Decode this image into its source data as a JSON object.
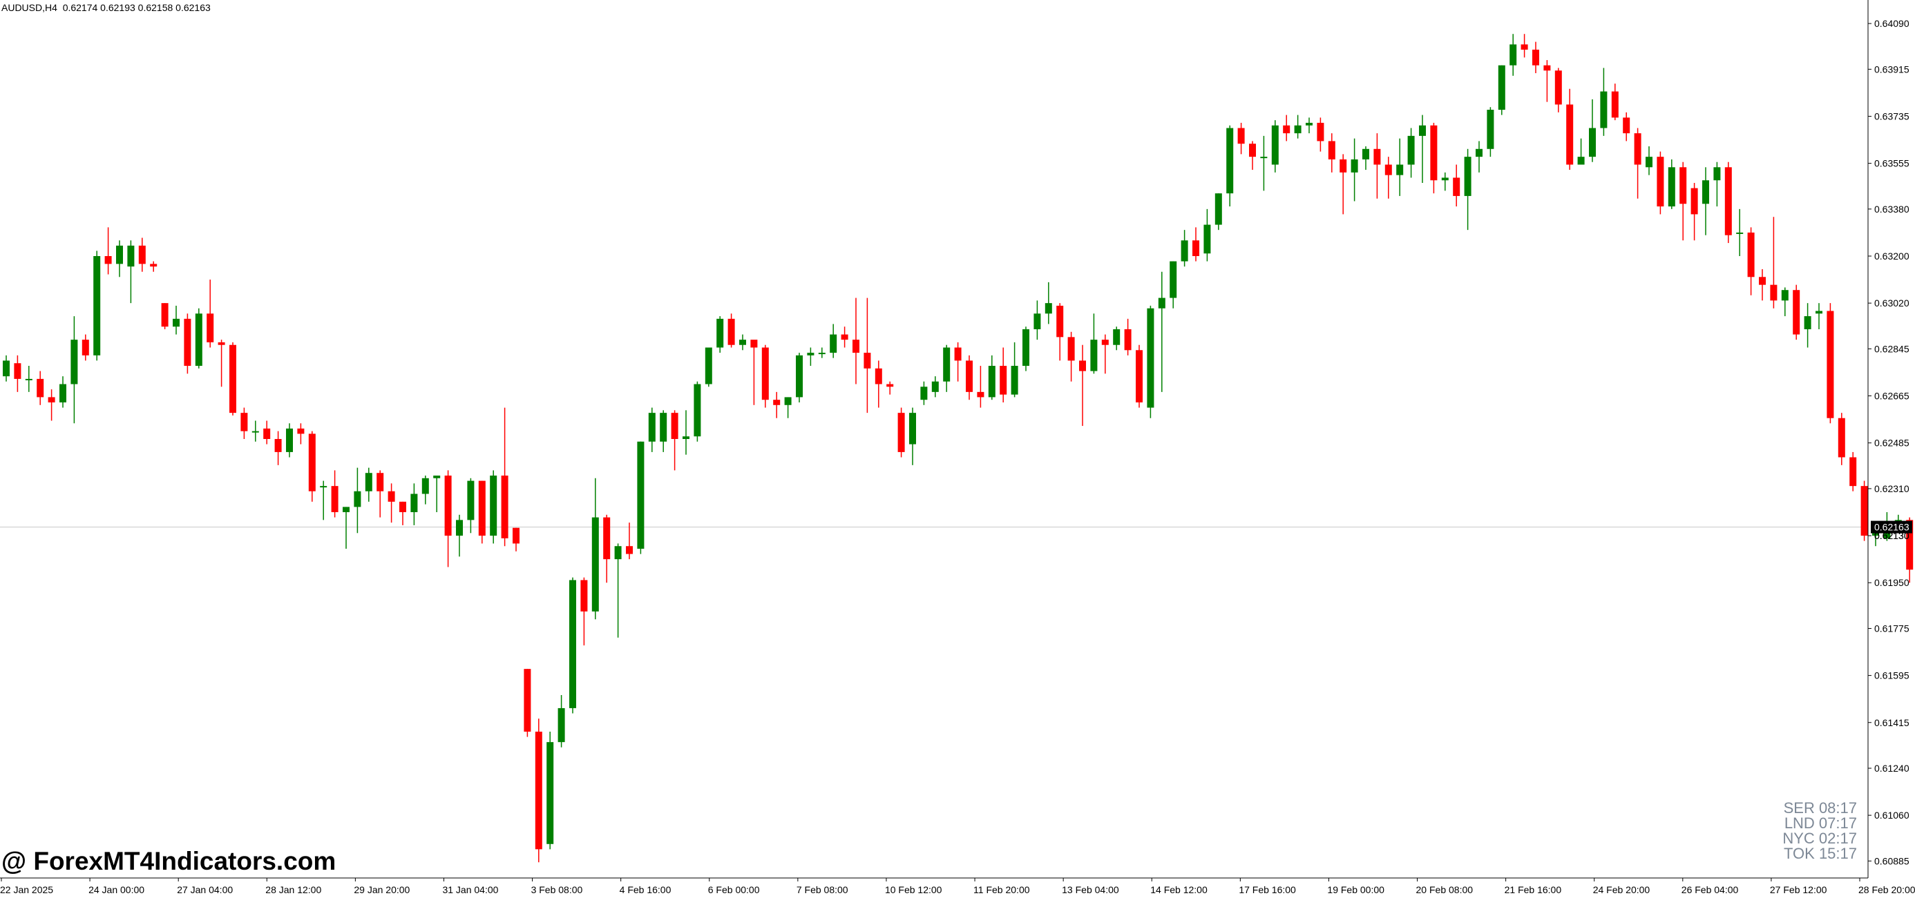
{
  "header": {
    "symbol": "AUDUSD,H4",
    "quote": "0.62174 0.62193 0.62158 0.62163"
  },
  "watermark": "@ ForexMT4Indicators.com",
  "sessions": [
    "SER 08:17",
    "LND 07:17",
    "NYC 02:17",
    "TOK 15:17"
  ],
  "colors": {
    "bull": "#008000",
    "bear": "#ff0000",
    "grid": "#c8c8c8",
    "axis": "#000000",
    "price_tag": "#000000"
  },
  "chart_data": {
    "type": "candlestick",
    "symbol": "AUDUSD",
    "timeframe": "H4",
    "ylim": [
      0.6082,
      0.6418
    ],
    "y_ticks": [
      "0.64090",
      "0.63915",
      "0.63735",
      "0.63555",
      "0.63380",
      "0.63200",
      "0.63020",
      "0.62845",
      "0.62665",
      "0.62485",
      "0.62310",
      "0.62130",
      "0.61950",
      "0.61775",
      "0.61595",
      "0.61415",
      "0.61240",
      "0.61060",
      "0.60885"
    ],
    "x_ticks": [
      "22 Jan 2025",
      "24 Jan 00:00",
      "27 Jan 04:00",
      "28 Jan 12:00",
      "29 Jan 20:00",
      "31 Jan 04:00",
      "3 Feb 08:00",
      "4 Feb 16:00",
      "6 Feb 00:00",
      "7 Feb 08:00",
      "10 Feb 12:00",
      "11 Feb 20:00",
      "13 Feb 04:00",
      "14 Feb 12:00",
      "17 Feb 16:00",
      "19 Feb 00:00",
      "20 Feb 08:00",
      "21 Feb 16:00",
      "24 Feb 20:00",
      "26 Feb 04:00",
      "27 Feb 12:00",
      "28 Feb 20:00"
    ],
    "current_price": "0.62163",
    "current_value": 0.62163,
    "hidden_tick": "0.62130",
    "candles": [
      [
        0.6274,
        0.628,
        0.6272,
        0.6282
      ],
      [
        0.6279,
        0.6273,
        0.6268,
        0.6282
      ],
      [
        0.6273,
        0.6273,
        0.6268,
        0.6278
      ],
      [
        0.6273,
        0.6266,
        0.6263,
        0.6276
      ],
      [
        0.6266,
        0.6264,
        0.6257,
        0.6269
      ],
      [
        0.6264,
        0.6271,
        0.6262,
        0.6274
      ],
      [
        0.6271,
        0.6288,
        0.6256,
        0.6297
      ],
      [
        0.6288,
        0.6282,
        0.628,
        0.629
      ],
      [
        0.6282,
        0.632,
        0.628,
        0.6322
      ],
      [
        0.632,
        0.6317,
        0.6313,
        0.6331
      ],
      [
        0.6317,
        0.6324,
        0.6312,
        0.6326
      ],
      [
        0.6316,
        0.6324,
        0.6302,
        0.6326
      ],
      [
        0.6324,
        0.6317,
        0.6314,
        0.6327
      ],
      [
        0.6317,
        0.6316,
        0.6314,
        0.6318
      ],
      [
        0.6302,
        0.6293,
        0.6292,
        0.6302
      ],
      [
        0.6293,
        0.6296,
        0.629,
        0.6301
      ],
      [
        0.6296,
        0.6278,
        0.6275,
        0.6298
      ],
      [
        0.6278,
        0.6298,
        0.6277,
        0.63
      ],
      [
        0.6298,
        0.6287,
        0.6285,
        0.6311
      ],
      [
        0.6287,
        0.6286,
        0.627,
        0.6288
      ],
      [
        0.6286,
        0.626,
        0.6259,
        0.6287
      ],
      [
        0.626,
        0.6253,
        0.625,
        0.6262
      ],
      [
        0.6253,
        0.6253,
        0.6249,
        0.6257
      ],
      [
        0.6254,
        0.625,
        0.6248,
        0.6257
      ],
      [
        0.625,
        0.6245,
        0.624,
        0.6253
      ],
      [
        0.6245,
        0.6254,
        0.6243,
        0.6256
      ],
      [
        0.6254,
        0.6252,
        0.6248,
        0.6256
      ],
      [
        0.6252,
        0.623,
        0.6226,
        0.6253
      ],
      [
        0.6232,
        0.6232,
        0.6219,
        0.6234
      ],
      [
        0.6232,
        0.6222,
        0.622,
        0.6238
      ],
      [
        0.6222,
        0.6224,
        0.6208,
        0.6224
      ],
      [
        0.6224,
        0.623,
        0.6214,
        0.6239
      ],
      [
        0.623,
        0.6237,
        0.6226,
        0.6239
      ],
      [
        0.6237,
        0.623,
        0.622,
        0.6238
      ],
      [
        0.623,
        0.6226,
        0.6218,
        0.6233
      ],
      [
        0.6226,
        0.6222,
        0.6217,
        0.6226
      ],
      [
        0.6222,
        0.6229,
        0.6217,
        0.6233
      ],
      [
        0.6229,
        0.6235,
        0.6225,
        0.6236
      ],
      [
        0.6235,
        0.6236,
        0.6222,
        0.6236
      ],
      [
        0.6236,
        0.6213,
        0.6201,
        0.6238
      ],
      [
        0.6213,
        0.6219,
        0.6205,
        0.6221
      ],
      [
        0.6219,
        0.6234,
        0.6214,
        0.6235
      ],
      [
        0.6234,
        0.6213,
        0.621,
        0.6234
      ],
      [
        0.6213,
        0.6236,
        0.621,
        0.6238
      ],
      [
        0.6236,
        0.6212,
        0.6209,
        0.6262
      ],
      [
        0.6216,
        0.621,
        0.6207,
        0.6216
      ],
      [
        0.6162,
        0.6138,
        0.6136,
        0.6162
      ],
      [
        0.6138,
        0.6093,
        0.6088,
        0.6143
      ],
      [
        0.6095,
        0.6134,
        0.6093,
        0.6138
      ],
      [
        0.6134,
        0.6147,
        0.6132,
        0.6152
      ],
      [
        0.6147,
        0.6196,
        0.6145,
        0.6197
      ],
      [
        0.6196,
        0.6184,
        0.6171,
        0.6197
      ],
      [
        0.6184,
        0.622,
        0.6181,
        0.6235
      ],
      [
        0.622,
        0.6204,
        0.6195,
        0.6221
      ],
      [
        0.6204,
        0.6209,
        0.6174,
        0.621
      ],
      [
        0.6209,
        0.6206,
        0.6204,
        0.6218
      ],
      [
        0.6208,
        0.6249,
        0.6206,
        0.6249
      ],
      [
        0.6249,
        0.626,
        0.6245,
        0.6262
      ],
      [
        0.6249,
        0.626,
        0.6245,
        0.6261
      ],
      [
        0.626,
        0.625,
        0.6238,
        0.6261
      ],
      [
        0.625,
        0.6251,
        0.6244,
        0.6261
      ],
      [
        0.6251,
        0.6271,
        0.6249,
        0.6272
      ],
      [
        0.6271,
        0.6285,
        0.627,
        0.6285
      ],
      [
        0.6285,
        0.6296,
        0.6283,
        0.6297
      ],
      [
        0.6296,
        0.6286,
        0.6285,
        0.6298
      ],
      [
        0.6286,
        0.6288,
        0.6284,
        0.629
      ],
      [
        0.6288,
        0.6285,
        0.6263,
        0.6287
      ],
      [
        0.6285,
        0.6265,
        0.6262,
        0.6286
      ],
      [
        0.6265,
        0.6263,
        0.6258,
        0.6268
      ],
      [
        0.6263,
        0.6266,
        0.6258,
        0.6266
      ],
      [
        0.6266,
        0.6282,
        0.6264,
        0.6283
      ],
      [
        0.6282,
        0.6283,
        0.6278,
        0.6285
      ],
      [
        0.6283,
        0.6283,
        0.6281,
        0.6285
      ],
      [
        0.6283,
        0.629,
        0.6281,
        0.6294
      ],
      [
        0.629,
        0.6288,
        0.6285,
        0.6293
      ],
      [
        0.6288,
        0.6283,
        0.6271,
        0.6304
      ],
      [
        0.6283,
        0.6277,
        0.626,
        0.6304
      ],
      [
        0.6277,
        0.6271,
        0.6262,
        0.628
      ],
      [
        0.6271,
        0.627,
        0.6267,
        0.6272
      ],
      [
        0.626,
        0.6245,
        0.6243,
        0.6262
      ],
      [
        0.6248,
        0.626,
        0.624,
        0.6262
      ],
      [
        0.6265,
        0.627,
        0.6263,
        0.6272
      ],
      [
        0.6268,
        0.6272,
        0.6266,
        0.6274
      ],
      [
        0.6272,
        0.6285,
        0.6268,
        0.6286
      ],
      [
        0.6285,
        0.628,
        0.6272,
        0.6287
      ],
      [
        0.628,
        0.6268,
        0.6265,
        0.6282
      ],
      [
        0.6268,
        0.6266,
        0.6262,
        0.6278
      ],
      [
        0.6266,
        0.6278,
        0.6265,
        0.6282
      ],
      [
        0.6278,
        0.6267,
        0.6264,
        0.6285
      ],
      [
        0.6267,
        0.6278,
        0.6266,
        0.6287
      ],
      [
        0.6278,
        0.6292,
        0.6276,
        0.6293
      ],
      [
        0.6292,
        0.6298,
        0.6288,
        0.6303
      ],
      [
        0.6298,
        0.6302,
        0.6294,
        0.631
      ],
      [
        0.6301,
        0.6289,
        0.628,
        0.6302
      ],
      [
        0.6289,
        0.628,
        0.6272,
        0.6291
      ],
      [
        0.628,
        0.6276,
        0.6255,
        0.6286
      ],
      [
        0.6276,
        0.6288,
        0.6275,
        0.6298
      ],
      [
        0.6288,
        0.6286,
        0.6275,
        0.629
      ],
      [
        0.6286,
        0.6292,
        0.6284,
        0.6293
      ],
      [
        0.6292,
        0.6284,
        0.6282,
        0.6296
      ],
      [
        0.6284,
        0.6264,
        0.6262,
        0.6286
      ],
      [
        0.6262,
        0.63,
        0.6258,
        0.6301
      ],
      [
        0.63,
        0.6304,
        0.6268,
        0.6314
      ],
      [
        0.6304,
        0.6318,
        0.63,
        0.6318
      ],
      [
        0.6318,
        0.6326,
        0.6316,
        0.633
      ],
      [
        0.6326,
        0.632,
        0.6318,
        0.6331
      ],
      [
        0.6321,
        0.6332,
        0.6318,
        0.6338
      ],
      [
        0.6332,
        0.6344,
        0.633,
        0.6344
      ],
      [
        0.6344,
        0.6369,
        0.6339,
        0.637
      ],
      [
        0.6369,
        0.6363,
        0.6359,
        0.6371
      ],
      [
        0.6363,
        0.6358,
        0.6353,
        0.6364
      ],
      [
        0.6358,
        0.6358,
        0.6345,
        0.6366
      ],
      [
        0.6355,
        0.637,
        0.6352,
        0.6372
      ],
      [
        0.637,
        0.6367,
        0.6364,
        0.6374
      ],
      [
        0.6367,
        0.637,
        0.6365,
        0.6374
      ],
      [
        0.637,
        0.6371,
        0.6367,
        0.6373
      ],
      [
        0.6371,
        0.6364,
        0.636,
        0.6373
      ],
      [
        0.6364,
        0.6357,
        0.6352,
        0.6367
      ],
      [
        0.6357,
        0.6352,
        0.6336,
        0.6359
      ],
      [
        0.6352,
        0.6357,
        0.6341,
        0.6365
      ],
      [
        0.6357,
        0.6361,
        0.6353,
        0.6362
      ],
      [
        0.6361,
        0.6355,
        0.6342,
        0.6367
      ],
      [
        0.6355,
        0.6351,
        0.6342,
        0.6358
      ],
      [
        0.6351,
        0.6355,
        0.6343,
        0.6365
      ],
      [
        0.6355,
        0.6366,
        0.635,
        0.6369
      ],
      [
        0.6366,
        0.637,
        0.6348,
        0.6374
      ],
      [
        0.637,
        0.6349,
        0.6344,
        0.6371
      ],
      [
        0.6349,
        0.635,
        0.6345,
        0.6352
      ],
      [
        0.635,
        0.6343,
        0.6339,
        0.6355
      ],
      [
        0.6343,
        0.6358,
        0.633,
        0.6361
      ],
      [
        0.6358,
        0.6361,
        0.6352,
        0.6364
      ],
      [
        0.6361,
        0.6376,
        0.6358,
        0.6377
      ],
      [
        0.6376,
        0.6393,
        0.6374,
        0.6393
      ],
      [
        0.6393,
        0.6401,
        0.6389,
        0.6405
      ],
      [
        0.6401,
        0.6399,
        0.6396,
        0.6405
      ],
      [
        0.6399,
        0.6393,
        0.639,
        0.6402
      ],
      [
        0.6393,
        0.6391,
        0.6379,
        0.6395
      ],
      [
        0.6391,
        0.6378,
        0.6375,
        0.6392
      ],
      [
        0.6378,
        0.6355,
        0.6353,
        0.6384
      ],
      [
        0.6355,
        0.6358,
        0.6355,
        0.6365
      ],
      [
        0.6358,
        0.6369,
        0.6356,
        0.638
      ],
      [
        0.6369,
        0.6383,
        0.6366,
        0.6392
      ],
      [
        0.6383,
        0.6373,
        0.6372,
        0.6386
      ],
      [
        0.6373,
        0.6367,
        0.6364,
        0.6375
      ],
      [
        0.6367,
        0.6355,
        0.6342,
        0.6369
      ],
      [
        0.6354,
        0.6358,
        0.6351,
        0.6362
      ],
      [
        0.6358,
        0.6339,
        0.6336,
        0.636
      ],
      [
        0.6339,
        0.6354,
        0.6338,
        0.6357
      ],
      [
        0.6354,
        0.634,
        0.6326,
        0.6356
      ],
      [
        0.6346,
        0.6336,
        0.6326,
        0.6348
      ],
      [
        0.634,
        0.6349,
        0.6328,
        0.6354
      ],
      [
        0.6349,
        0.6354,
        0.6339,
        0.6356
      ],
      [
        0.6354,
        0.6328,
        0.6325,
        0.6356
      ],
      [
        0.6329,
        0.6329,
        0.632,
        0.6338
      ],
      [
        0.6329,
        0.6312,
        0.6305,
        0.6331
      ],
      [
        0.6312,
        0.6309,
        0.6303,
        0.6315
      ],
      [
        0.6309,
        0.6303,
        0.63,
        0.6335
      ],
      [
        0.6303,
        0.6307,
        0.6297,
        0.6308
      ],
      [
        0.6307,
        0.629,
        0.6288,
        0.6309
      ],
      [
        0.6292,
        0.6297,
        0.6285,
        0.6302
      ],
      [
        0.6298,
        0.6299,
        0.6292,
        0.6302
      ],
      [
        0.6299,
        0.6258,
        0.6256,
        0.6302
      ],
      [
        0.6258,
        0.6243,
        0.624,
        0.626
      ],
      [
        0.6243,
        0.6232,
        0.623,
        0.6245
      ],
      [
        0.6232,
        0.6213,
        0.6211,
        0.6234
      ],
      [
        0.6213,
        0.6214,
        0.6209,
        0.6216
      ],
      [
        0.6212,
        0.6218,
        0.6211,
        0.6222
      ],
      [
        0.6218,
        0.6219,
        0.6215,
        0.6221
      ],
      [
        0.6219,
        0.62,
        0.6195,
        0.622
      ],
      [
        0.6204,
        0.6215,
        0.6202,
        0.6216
      ],
      [
        0.6215,
        0.6216,
        0.6212,
        0.6221
      ]
    ]
  }
}
